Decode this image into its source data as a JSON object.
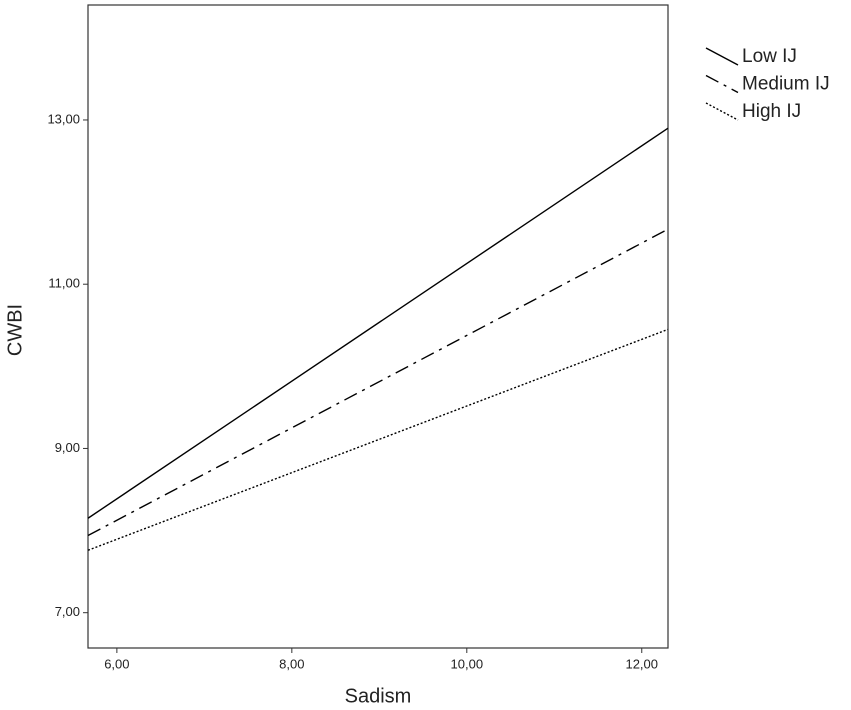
{
  "chart_data": {
    "type": "line",
    "x_label": "Sadism",
    "y_label": "CWBI",
    "x": [
      5.67,
      12.3
    ],
    "series": [
      {
        "name": "Low IJ",
        "color": "#000000",
        "style": "solid",
        "values": [
          8.15,
          12.9
        ]
      },
      {
        "name": "Medium IJ",
        "color": "#000000",
        "style": "dashdot",
        "values": [
          7.94,
          11.67
        ]
      },
      {
        "name": "High IJ",
        "color": "#000000",
        "style": "dotted",
        "values": [
          7.76,
          10.45
        ]
      }
    ],
    "xlim": [
      5.67,
      12.3
    ],
    "ylim": [
      6.57,
      14.4
    ],
    "xticks": [
      {
        "value": 6,
        "label": "6,00"
      },
      {
        "value": 8,
        "label": "8,00"
      },
      {
        "value": 10,
        "label": "10,00"
      },
      {
        "value": 12,
        "label": "12,00"
      }
    ],
    "yticks": [
      {
        "value": 7,
        "label": "7,00"
      },
      {
        "value": 9,
        "label": "9,00"
      },
      {
        "value": 11,
        "label": "11,00"
      },
      {
        "value": 13,
        "label": "13,00"
      }
    ],
    "grid": false,
    "legend": "right"
  }
}
